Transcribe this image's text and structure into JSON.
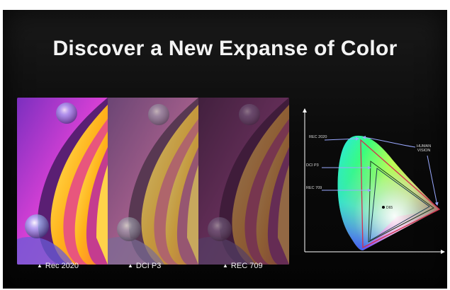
{
  "title": "Discover a New Expanse of Color",
  "panels": [
    {
      "caption": "Rec 2020"
    },
    {
      "caption": "DCI P3"
    },
    {
      "caption": "REC 709"
    }
  ],
  "diagram": {
    "labels": {
      "rec2020": "REC 2020",
      "dcip3": "DCI P3",
      "rec709": "REC 709",
      "human_vision": "HUMAN\nVISION",
      "d65": "D65"
    }
  },
  "colors": {
    "background": "#0b0b0b",
    "title": "#f4f4f4",
    "arrow": "#9aa9ff",
    "panel_rec2020_sky": "#c13fd0",
    "panel_rec2020_leaf": "#ffcc1a",
    "triangle_rec2020": "#d32f4b",
    "triangle_p3": "#1d3d1d",
    "triangle_709": "#1a3a50"
  }
}
